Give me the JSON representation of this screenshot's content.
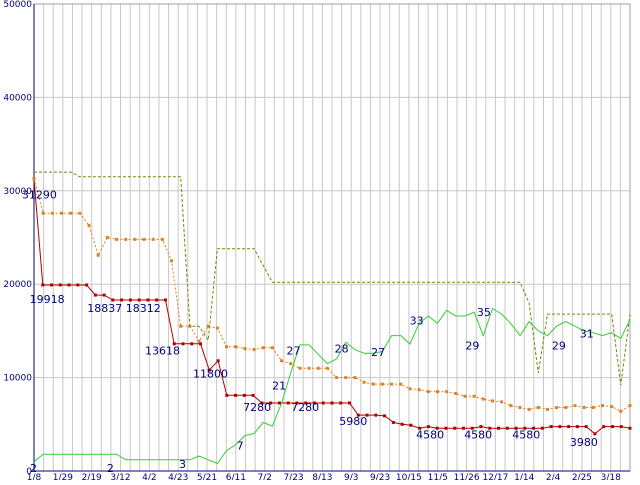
{
  "chart_data": {
    "type": "line",
    "grid": true,
    "y_axis": {
      "min": 0,
      "max": 50000,
      "ticks": [
        "0",
        "10000",
        "20000",
        "30000",
        "40000",
        "50000"
      ],
      "tick_values": [
        0,
        10000,
        20000,
        30000,
        40000,
        50000
      ]
    },
    "x_axis": {
      "min": 0,
      "max": 62,
      "tick_labels": [
        "1/8",
        "1/29",
        "2/19",
        "3/12",
        "4/2",
        "4/23",
        "5/21",
        "6/11",
        "7/2",
        "7/23",
        "8/13",
        "9/3",
        "9/23",
        "10/15",
        "11/5",
        "11/26",
        "12/17",
        "1/14",
        "2/4",
        "2/25",
        "3/18"
      ],
      "tick_positions": [
        0,
        3,
        6,
        9,
        12,
        15,
        18,
        21,
        24,
        27,
        30,
        33,
        36,
        39,
        42,
        45,
        48,
        51,
        54,
        57,
        60
      ]
    },
    "series": [
      {
        "color": "#b00000",
        "style": "solid-marker",
        "values": [
          31290,
          19918,
          19918,
          19918,
          19918,
          19918,
          19918,
          18837,
          18837,
          18312,
          18312,
          18312,
          18312,
          18312,
          18312,
          18312,
          13618,
          13618,
          13618,
          13618,
          10800,
          11800,
          8100,
          8100,
          8100,
          8100,
          7280,
          7280,
          7280,
          7280,
          7280,
          7280,
          7280,
          7280,
          7280,
          7280,
          7280,
          5980,
          5980,
          5980,
          5900,
          5200,
          5000,
          4900,
          4580,
          4750,
          4580,
          4580,
          4580,
          4580,
          4580,
          4750,
          4580,
          4580,
          4580,
          4580,
          4580,
          4580,
          4580,
          4750,
          4750,
          4750,
          4750,
          4750,
          3980,
          4750,
          4750,
          4750,
          4580
        ]
      },
      {
        "color": "#e08020",
        "style": "dotted-marker",
        "values": [
          31290,
          27600,
          27600,
          27600,
          27600,
          27600,
          26300,
          23100,
          25000,
          24800,
          24800,
          24800,
          24800,
          24800,
          24800,
          22500,
          15500,
          15500,
          13900,
          15500,
          15300,
          13300,
          13300,
          13100,
          13000,
          13200,
          13200,
          11800,
          11500,
          11000,
          11000,
          11000,
          11000,
          10000,
          10000,
          10000,
          9500,
          9300,
          9300,
          9300,
          9300,
          8800,
          8700,
          8500,
          8500,
          8500,
          8300,
          8000,
          8000,
          7700,
          7500,
          7400,
          7000,
          6800,
          6600,
          6800,
          6600,
          6800,
          6800,
          7000,
          6800,
          6800,
          7000,
          6900,
          6400,
          7000
        ]
      },
      {
        "color": "#808000",
        "style": "dashed",
        "values": [
          32000,
          32000,
          32000,
          32000,
          32000,
          31500,
          31500,
          31500,
          31500,
          31500,
          31500,
          31500,
          31500,
          31500,
          31500,
          31500,
          31500,
          15500,
          15500,
          14000,
          23800,
          23800,
          23800,
          23800,
          23800,
          22000,
          20200,
          20200,
          20200,
          20200,
          20200,
          20200,
          20200,
          20200,
          20200,
          20200,
          20200,
          20200,
          20200,
          20200,
          20200,
          20200,
          20200,
          20200,
          20200,
          20200,
          20200,
          20200,
          20200,
          20200,
          20200,
          20200,
          20200,
          20200,
          18000,
          10500,
          16800,
          16800,
          16800,
          16800,
          16800,
          16800,
          16800,
          16800,
          9200,
          16800
        ]
      },
      {
        "color": "#30d030",
        "style": "solid",
        "values": [
          1000,
          1800,
          1800,
          1800,
          1800,
          1800,
          1800,
          1800,
          1800,
          1800,
          1200,
          1200,
          1200,
          1200,
          1200,
          1200,
          1200,
          1200,
          1600,
          1200,
          800,
          2200,
          2800,
          3800,
          4000,
          5200,
          4800,
          7280,
          10500,
          13500,
          13500,
          12500,
          11500,
          12000,
          13800,
          13000,
          12600,
          12600,
          12800,
          14500,
          14500,
          13600,
          15800,
          16600,
          15800,
          17200,
          16600,
          16600,
          17000,
          14500,
          17400,
          16800,
          15800,
          14500,
          16000,
          15000,
          14500,
          15500,
          16000,
          15500,
          15000,
          14800,
          14500,
          14800,
          14200,
          16200
        ]
      }
    ],
    "data_labels": [
      {
        "text": "31290",
        "x": 0.2,
        "y": 29200,
        "dx": -14
      },
      {
        "text": "19918",
        "x": 1,
        "y": 18000,
        "dx": -14
      },
      {
        "text": "18837",
        "x": 7,
        "y": 17000,
        "dx": -14
      },
      {
        "text": "18312",
        "x": 11,
        "y": 17000,
        "dx": -14
      },
      {
        "text": "13618",
        "x": 13,
        "y": 12500,
        "dx": -14
      },
      {
        "text": "11800",
        "x": 18,
        "y": 10000,
        "dx": -14
      },
      {
        "text": "7280",
        "x": 23,
        "y": 6400,
        "dx": -12
      },
      {
        "text": "7280",
        "x": 28,
        "y": 6400,
        "dx": -12
      },
      {
        "text": "5980",
        "x": 33,
        "y": 4900,
        "dx": -12
      },
      {
        "text": "4580",
        "x": 41,
        "y": 3500,
        "dx": -12
      },
      {
        "text": "4580",
        "x": 46,
        "y": 3500,
        "dx": -12
      },
      {
        "text": "4580",
        "x": 51,
        "y": 3500,
        "dx": -12
      },
      {
        "text": "3980",
        "x": 57,
        "y": 2700,
        "dx": -12
      },
      {
        "text": "2",
        "x": 0,
        "y": -100,
        "dx": -4
      },
      {
        "text": "2",
        "x": 8,
        "y": -100,
        "dx": -4
      },
      {
        "text": "3",
        "x": 15.5,
        "y": 300,
        "dx": -4
      },
      {
        "text": "7",
        "x": 21.5,
        "y": 2300,
        "dx": -4
      },
      {
        "text": "21",
        "x": 25.5,
        "y": 8700,
        "dx": -7
      },
      {
        "text": "27",
        "x": 27,
        "y": 12500,
        "dx": -7
      },
      {
        "text": "28",
        "x": 32,
        "y": 12700,
        "dx": -7
      },
      {
        "text": "27",
        "x": 35.8,
        "y": 12300,
        "dx": -7
      },
      {
        "text": "33",
        "x": 39.8,
        "y": 15700,
        "dx": -7
      },
      {
        "text": "35",
        "x": 46.8,
        "y": 16600,
        "dx": -7
      },
      {
        "text": "29",
        "x": 45.6,
        "y": 13000,
        "dx": -7
      },
      {
        "text": "29",
        "x": 54.6,
        "y": 13000,
        "dx": -7
      },
      {
        "text": "31",
        "x": 57.5,
        "y": 14300,
        "dx": -7
      }
    ]
  }
}
